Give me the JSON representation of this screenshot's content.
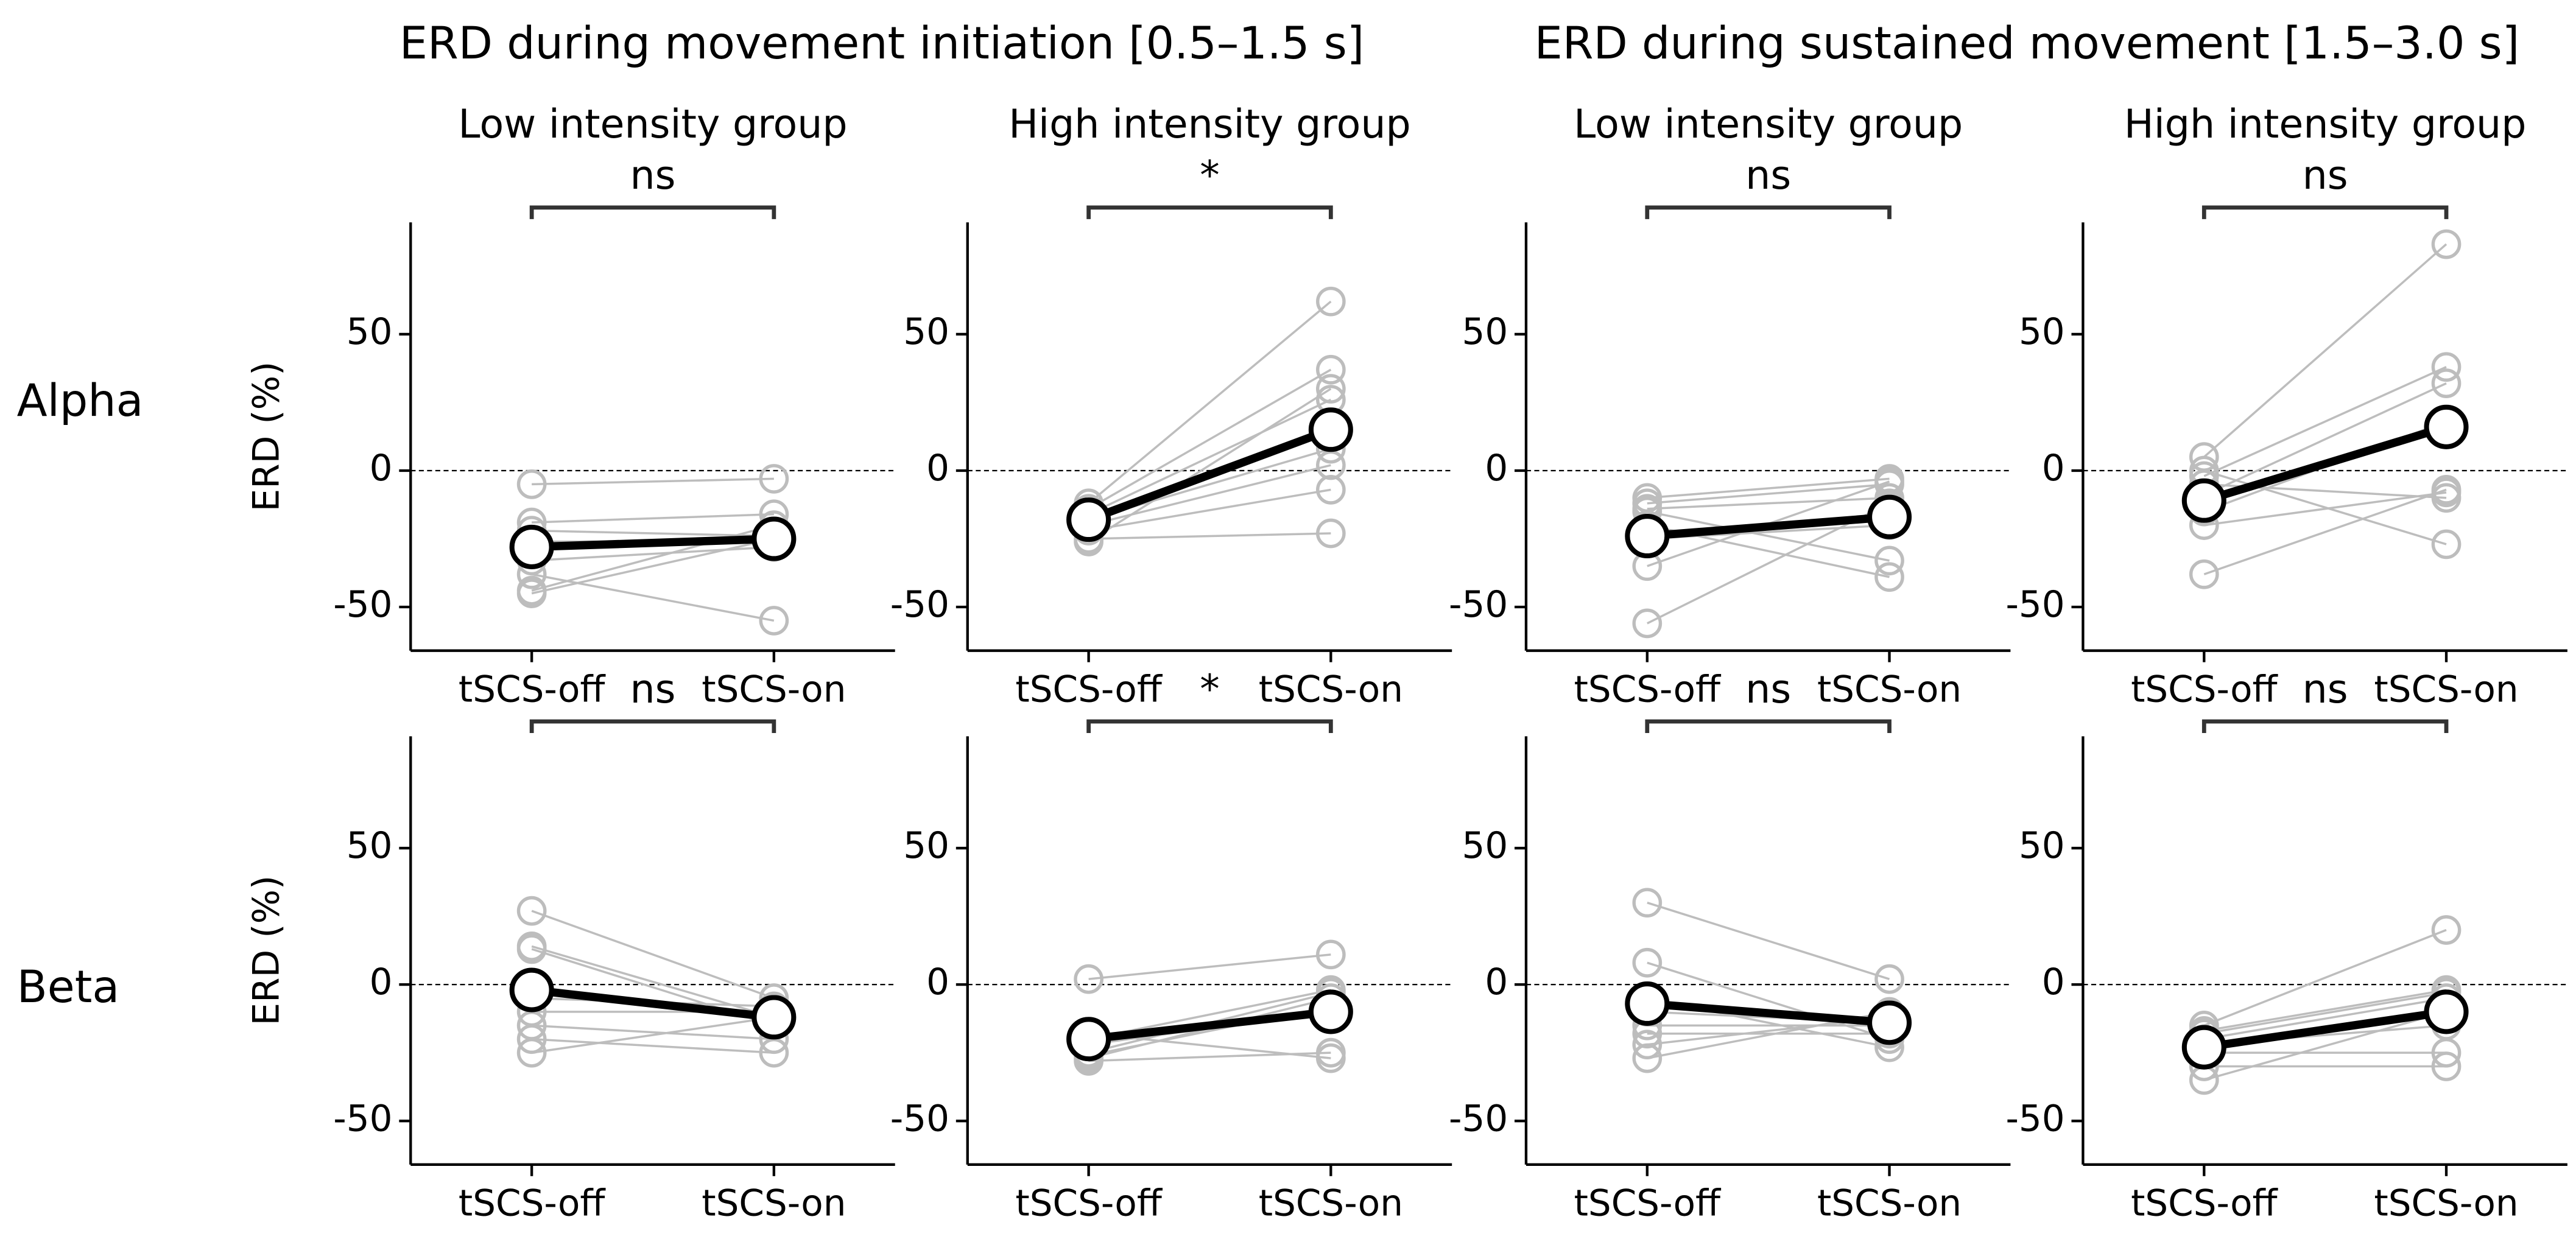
{
  "figure": {
    "column_titles": [
      "ERD during movement initiation [0.5–1.5 s]",
      "ERD during sustained movement [1.5–3.0 s]"
    ],
    "row_labels": [
      "Alpha",
      "Beta"
    ]
  },
  "chart_data": [
    {
      "type": "line",
      "title": "Low intensity group",
      "annotation": "ns",
      "ylabel": "ERD (%)",
      "categories": [
        "tSCS-off",
        "tSCS-on"
      ],
      "ylim": [
        -66,
        91
      ],
      "yticks": [
        -50,
        0,
        50
      ],
      "reference_line": 0,
      "series": [
        {
          "color": "#bdbdbd",
          "values": [
            -5,
            -3
          ]
        },
        {
          "color": "#bdbdbd",
          "values": [
            -19,
            -16
          ]
        },
        {
          "color": "#bdbdbd",
          "values": [
            -22,
            -24
          ]
        },
        {
          "color": "#bdbdbd",
          "values": [
            -26,
            -26
          ]
        },
        {
          "color": "#bdbdbd",
          "values": [
            -33,
            -28
          ]
        },
        {
          "color": "#bdbdbd",
          "values": [
            -44,
            -20
          ]
        },
        {
          "color": "#bdbdbd",
          "values": [
            -45,
            -25
          ]
        },
        {
          "color": "#bdbdbd",
          "values": [
            -38,
            -55
          ]
        },
        {
          "color": "#000000",
          "values": [
            -28,
            -25
          ]
        }
      ]
    },
    {
      "type": "line",
      "title": "High intensity group",
      "annotation": "*",
      "categories": [
        "tSCS-off",
        "tSCS-on"
      ],
      "ylim": [
        -66,
        91
      ],
      "yticks": [
        -50,
        0,
        50
      ],
      "reference_line": 0,
      "series": [
        {
          "color": "#bdbdbd",
          "values": [
            -12,
            62
          ]
        },
        {
          "color": "#bdbdbd",
          "values": [
            -14,
            37
          ]
        },
        {
          "color": "#bdbdbd",
          "values": [
            -16,
            26
          ]
        },
        {
          "color": "#bdbdbd",
          "values": [
            -18,
            8
          ]
        },
        {
          "color": "#bdbdbd",
          "values": [
            -20,
            2
          ]
        },
        {
          "color": "#bdbdbd",
          "values": [
            -22,
            -7
          ]
        },
        {
          "color": "#bdbdbd",
          "values": [
            -25,
            -23
          ]
        },
        {
          "color": "#bdbdbd",
          "values": [
            -26,
            30
          ]
        },
        {
          "color": "#000000",
          "values": [
            -18,
            15
          ]
        }
      ]
    },
    {
      "type": "line",
      "title": "Low intensity group",
      "annotation": "ns",
      "categories": [
        "tSCS-off",
        "tSCS-on"
      ],
      "ylim": [
        -66,
        91
      ],
      "yticks": [
        -50,
        0,
        50
      ],
      "reference_line": 0,
      "series": [
        {
          "color": "#bdbdbd",
          "values": [
            -10,
            -3
          ]
        },
        {
          "color": "#bdbdbd",
          "values": [
            -12,
            -5
          ]
        },
        {
          "color": "#bdbdbd",
          "values": [
            -15,
            -33
          ]
        },
        {
          "color": "#bdbdbd",
          "values": [
            -20,
            -39
          ]
        },
        {
          "color": "#bdbdbd",
          "values": [
            -25,
            -20
          ]
        },
        {
          "color": "#bdbdbd",
          "values": [
            -35,
            -4
          ]
        },
        {
          "color": "#bdbdbd",
          "values": [
            -56,
            -12
          ]
        },
        {
          "color": "#bdbdbd",
          "values": [
            -14,
            -10
          ]
        },
        {
          "color": "#000000",
          "values": [
            -24,
            -17
          ]
        }
      ]
    },
    {
      "type": "line",
      "title": "High intensity group",
      "annotation": "ns",
      "categories": [
        "tSCS-off",
        "tSCS-on"
      ],
      "ylim": [
        -66,
        91
      ],
      "yticks": [
        -50,
        0,
        50
      ],
      "reference_line": 0,
      "series": [
        {
          "color": "#bdbdbd",
          "values": [
            5,
            83
          ]
        },
        {
          "color": "#bdbdbd",
          "values": [
            -2,
            38
          ]
        },
        {
          "color": "#bdbdbd",
          "values": [
            -9,
            32
          ]
        },
        {
          "color": "#bdbdbd",
          "values": [
            -20,
            -8
          ]
        },
        {
          "color": "#bdbdbd",
          "values": [
            -38,
            -7
          ]
        },
        {
          "color": "#bdbdbd",
          "values": [
            0,
            -27
          ]
        },
        {
          "color": "#bdbdbd",
          "values": [
            -15,
            18
          ]
        },
        {
          "color": "#bdbdbd",
          "values": [
            -5,
            -10
          ]
        },
        {
          "color": "#000000",
          "values": [
            -11,
            16
          ]
        }
      ]
    },
    {
      "type": "line",
      "annotation": "ns",
      "ylabel": "ERD (%)",
      "categories": [
        "tSCS-off",
        "tSCS-on"
      ],
      "ylim": [
        -66,
        91
      ],
      "yticks": [
        -50,
        0,
        50
      ],
      "reference_line": 0,
      "series": [
        {
          "color": "#bdbdbd",
          "values": [
            27,
            -5
          ]
        },
        {
          "color": "#bdbdbd",
          "values": [
            14,
            -12
          ]
        },
        {
          "color": "#bdbdbd",
          "values": [
            13,
            -15
          ]
        },
        {
          "color": "#bdbdbd",
          "values": [
            -5,
            -8
          ]
        },
        {
          "color": "#bdbdbd",
          "values": [
            -10,
            -10
          ]
        },
        {
          "color": "#bdbdbd",
          "values": [
            -15,
            -20
          ]
        },
        {
          "color": "#bdbdbd",
          "values": [
            -20,
            -25
          ]
        },
        {
          "color": "#bdbdbd",
          "values": [
            -25,
            -12
          ]
        },
        {
          "color": "#000000",
          "values": [
            -2,
            -12
          ]
        }
      ]
    },
    {
      "type": "line",
      "annotation": "*",
      "categories": [
        "tSCS-off",
        "tSCS-on"
      ],
      "ylim": [
        -66,
        91
      ],
      "yticks": [
        -50,
        0,
        50
      ],
      "reference_line": 0,
      "series": [
        {
          "color": "#bdbdbd",
          "values": [
            2,
            11
          ]
        },
        {
          "color": "#bdbdbd",
          "values": [
            -25,
            -3
          ]
        },
        {
          "color": "#bdbdbd",
          "values": [
            -27,
            -5
          ]
        },
        {
          "color": "#bdbdbd",
          "values": [
            -28,
            -25
          ]
        },
        {
          "color": "#bdbdbd",
          "values": [
            -18,
            -27
          ]
        },
        {
          "color": "#bdbdbd",
          "values": [
            -22,
            -10
          ]
        },
        {
          "color": "#bdbdbd",
          "values": [
            -26,
            -8
          ]
        },
        {
          "color": "#bdbdbd",
          "values": [
            -20,
            -2
          ]
        },
        {
          "color": "#000000",
          "values": [
            -20,
            -10
          ]
        }
      ]
    },
    {
      "type": "line",
      "annotation": "ns",
      "categories": [
        "tSCS-off",
        "tSCS-on"
      ],
      "ylim": [
        -66,
        91
      ],
      "yticks": [
        -50,
        0,
        50
      ],
      "reference_line": 0,
      "series": [
        {
          "color": "#bdbdbd",
          "values": [
            30,
            2
          ]
        },
        {
          "color": "#bdbdbd",
          "values": [
            8,
            -20
          ]
        },
        {
          "color": "#bdbdbd",
          "values": [
            -5,
            -23
          ]
        },
        {
          "color": "#bdbdbd",
          "values": [
            -15,
            -15
          ]
        },
        {
          "color": "#bdbdbd",
          "values": [
            -18,
            -18
          ]
        },
        {
          "color": "#bdbdbd",
          "values": [
            -22,
            -12
          ]
        },
        {
          "color": "#bdbdbd",
          "values": [
            -27,
            -10
          ]
        },
        {
          "color": "#bdbdbd",
          "values": [
            -10,
            -14
          ]
        },
        {
          "color": "#000000",
          "values": [
            -7,
            -14
          ]
        }
      ]
    },
    {
      "type": "line",
      "annotation": "ns",
      "categories": [
        "tSCS-off",
        "tSCS-on"
      ],
      "ylim": [
        -66,
        91
      ],
      "yticks": [
        -50,
        0,
        50
      ],
      "reference_line": 0,
      "series": [
        {
          "color": "#bdbdbd",
          "values": [
            -15,
            20
          ]
        },
        {
          "color": "#bdbdbd",
          "values": [
            -18,
            -3
          ]
        },
        {
          "color": "#bdbdbd",
          "values": [
            -20,
            -5
          ]
        },
        {
          "color": "#bdbdbd",
          "values": [
            -25,
            -25
          ]
        },
        {
          "color": "#bdbdbd",
          "values": [
            -30,
            -30
          ]
        },
        {
          "color": "#bdbdbd",
          "values": [
            -35,
            -10
          ]
        },
        {
          "color": "#bdbdbd",
          "values": [
            -22,
            -15
          ]
        },
        {
          "color": "#bdbdbd",
          "values": [
            -17,
            -2
          ]
        },
        {
          "color": "#000000",
          "values": [
            -23,
            -10
          ]
        }
      ]
    }
  ]
}
